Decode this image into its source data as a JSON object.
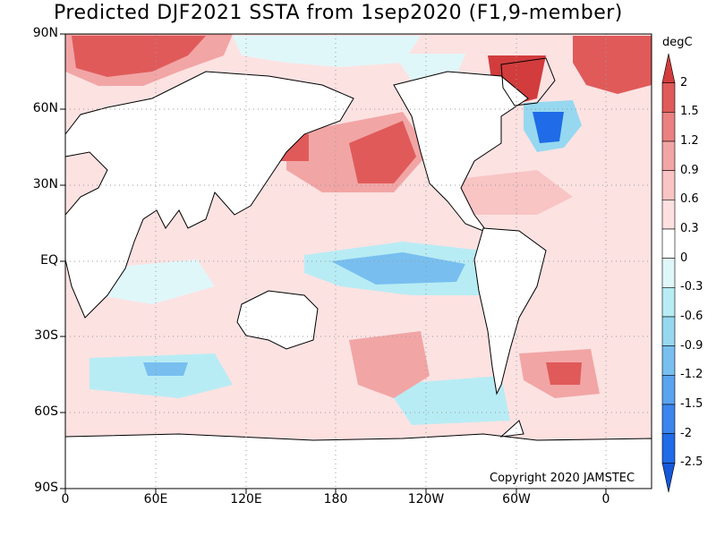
{
  "title": "Predicted DJF2021 SSTA from 1sep2020 (F1,9-member)",
  "units": "degC",
  "copyright": "Copyright 2020 JAMSTEC",
  "y_axis_labels": [
    "90N",
    "60N",
    "30N",
    "EQ",
    "30S",
    "60S",
    "90S"
  ],
  "x_axis_labels": [
    "0",
    "60E",
    "120E",
    "180",
    "120W",
    "60W",
    "0"
  ],
  "colorbar": {
    "labels": [
      "2",
      "1.5",
      "1.2",
      "0.9",
      "0.6",
      "0.3",
      "0",
      "-0.3",
      "-0.6",
      "-0.9",
      "-1.2",
      "-1.5",
      "-2",
      "-2.5"
    ],
    "colors": [
      "#d23c3c",
      "#e05a5a",
      "#ea8080",
      "#f2a5a5",
      "#f8c4c4",
      "#fde0e0",
      "#ffffff",
      "#e0f7fa",
      "#b8ecf4",
      "#96d8f0",
      "#78bff0",
      "#5aa3ef",
      "#3a86ee",
      "#1f6be8",
      "#1558d8"
    ]
  }
}
